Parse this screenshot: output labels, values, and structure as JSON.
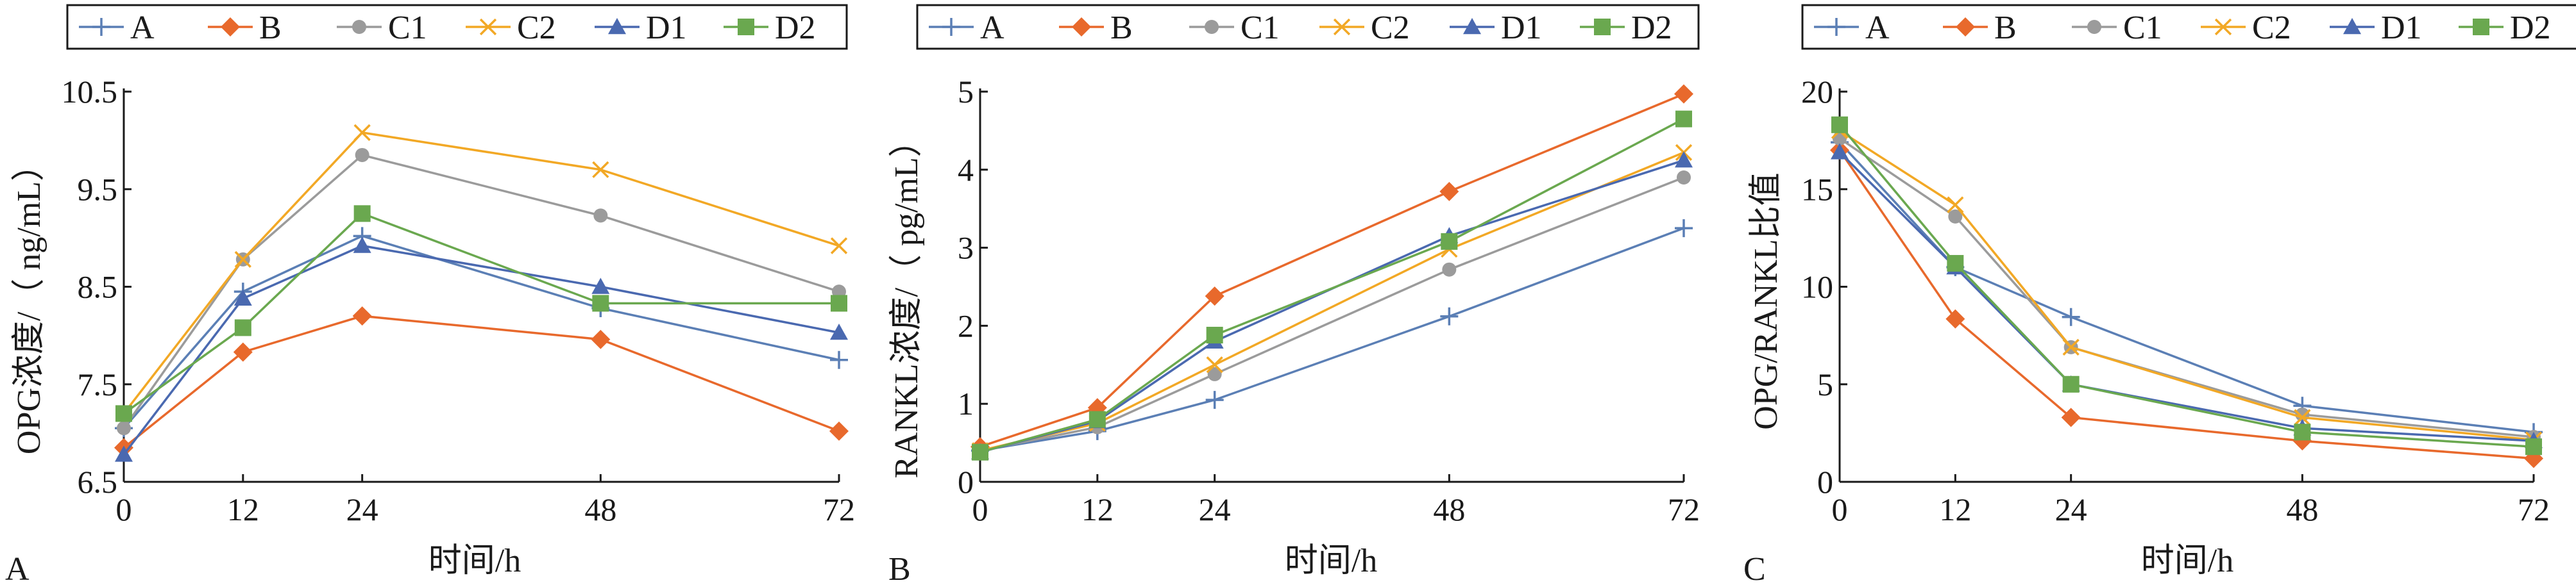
{
  "colors": {
    "A": "#5b7fb5",
    "B": "#e8692c",
    "C1": "#9b9b9b",
    "C2": "#f2a825",
    "D1": "#4a69b0",
    "D2": "#6aa84f"
  },
  "markers": {
    "A": "plus",
    "B": "diamond",
    "C1": "circle",
    "C2": "x",
    "D1": "triangle",
    "D2": "square"
  },
  "chart_data": [
    {
      "type": "line",
      "panel_label": "A",
      "xlabel": "时间/h",
      "ylabel": "OPG浓度/（ ng/mL）",
      "x": [
        0,
        12,
        24,
        48,
        72
      ],
      "ylim": [
        6.5,
        10.5
      ],
      "yticks": [
        "6.5",
        "7.5",
        "8.5",
        "9.5",
        "10.5"
      ],
      "ytick_values": [
        6.5,
        7.5,
        8.5,
        9.5,
        10.5
      ],
      "xticks": [
        "0",
        "12",
        "24",
        "48",
        "72"
      ],
      "legend_position": "top",
      "series": [
        {
          "name": "A",
          "values": [
            7.05,
            8.45,
            9.02,
            8.28,
            7.75
          ]
        },
        {
          "name": "B",
          "values": [
            6.85,
            7.83,
            8.2,
            7.96,
            7.02
          ]
        },
        {
          "name": "C1",
          "values": [
            7.05,
            8.78,
            9.85,
            9.23,
            8.45
          ]
        },
        {
          "name": "C2",
          "values": [
            7.2,
            8.78,
            10.08,
            9.7,
            8.92
          ]
        },
        {
          "name": "D1",
          "values": [
            6.78,
            8.38,
            8.92,
            8.5,
            8.03
          ]
        },
        {
          "name": "D2",
          "values": [
            7.2,
            8.08,
            9.25,
            8.33,
            8.33
          ]
        }
      ]
    },
    {
      "type": "line",
      "panel_label": "B",
      "xlabel": "时间/h",
      "ylabel": "RANKL浓度/（ pg/mL）",
      "x": [
        0,
        12,
        24,
        48,
        72
      ],
      "ylim": [
        0,
        5
      ],
      "yticks": [
        "0",
        "1",
        "2",
        "3",
        "4",
        "5"
      ],
      "ytick_values": [
        0,
        1,
        2,
        3,
        4,
        5
      ],
      "xticks": [
        "0",
        "12",
        "24",
        "48",
        "72"
      ],
      "legend_position": "top",
      "series": [
        {
          "name": "A",
          "values": [
            0.4,
            0.65,
            1.05,
            2.12,
            3.25
          ]
        },
        {
          "name": "B",
          "values": [
            0.45,
            0.95,
            2.38,
            3.72,
            4.97
          ]
        },
        {
          "name": "C1",
          "values": [
            0.4,
            0.7,
            1.38,
            2.72,
            3.9
          ]
        },
        {
          "name": "C2",
          "values": [
            0.4,
            0.75,
            1.5,
            2.98,
            4.22
          ]
        },
        {
          "name": "D1",
          "values": [
            0.38,
            0.78,
            1.8,
            3.15,
            4.12
          ]
        },
        {
          "name": "D2",
          "values": [
            0.38,
            0.8,
            1.88,
            3.08,
            4.65
          ]
        }
      ]
    },
    {
      "type": "line",
      "panel_label": "C",
      "xlabel": "时间/h",
      "ylabel": "OPG/RANKL比值",
      "x": [
        0,
        12,
        24,
        48,
        72
      ],
      "ylim": [
        0,
        20
      ],
      "yticks": [
        "0",
        "5",
        "10",
        "15",
        "20"
      ],
      "ytick_values": [
        0,
        5,
        10,
        15,
        20
      ],
      "xticks": [
        "0",
        "12",
        "24",
        "48",
        "72"
      ],
      "legend_position": "top",
      "series": [
        {
          "name": "A",
          "values": [
            17.4,
            11.0,
            8.45,
            3.9,
            2.55
          ]
        },
        {
          "name": "B",
          "values": [
            17.0,
            8.35,
            3.3,
            2.1,
            1.2
          ]
        },
        {
          "name": "C1",
          "values": [
            17.6,
            13.6,
            6.9,
            3.45,
            2.3
          ]
        },
        {
          "name": "C2",
          "values": [
            18.0,
            14.2,
            6.9,
            3.3,
            2.15
          ]
        },
        {
          "name": "D1",
          "values": [
            16.9,
            11.0,
            5.0,
            2.75,
            2.1
          ]
        },
        {
          "name": "D2",
          "values": [
            18.3,
            11.2,
            5.0,
            2.55,
            1.8
          ]
        }
      ]
    }
  ]
}
